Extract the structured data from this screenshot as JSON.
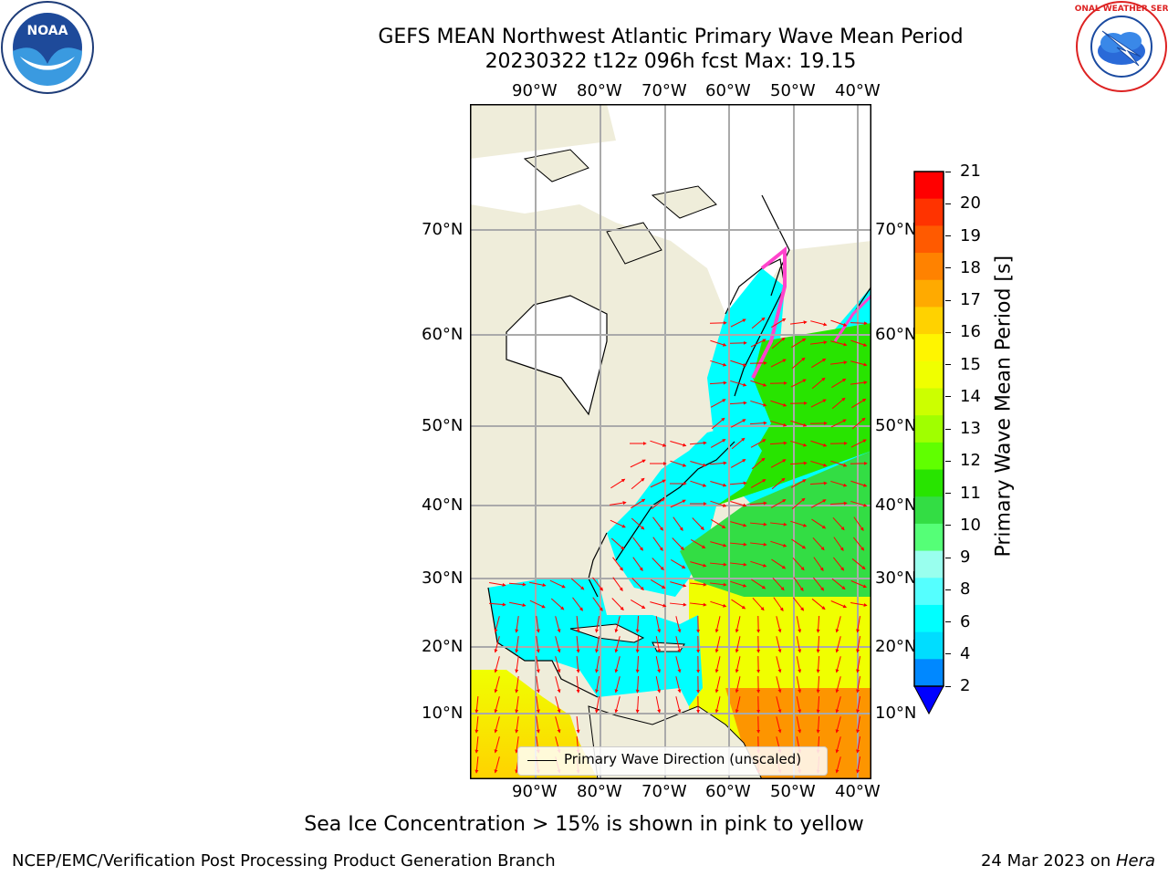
{
  "title": {
    "line1": "GEFS MEAN Northwest Atlantic Primary Wave Mean Period",
    "line2": "20230322 t12z 096h fcst   Max: 19.15"
  },
  "map": {
    "lon_labels_top": [
      "90°W",
      "80°W",
      "70°W",
      "60°W",
      "50°W",
      "40°W"
    ],
    "lon_labels_bottom": [
      "90°W",
      "80°W",
      "70°W",
      "60°W",
      "50°W",
      "40°W"
    ],
    "lat_labels_left": [
      "70°N",
      "60°N",
      "50°N",
      "40°N",
      "30°N",
      "20°N",
      "10°N"
    ],
    "lat_labels_right": [
      "70°N",
      "60°N",
      "50°N",
      "40°N",
      "30°N",
      "20°N",
      "10°N"
    ],
    "legend": "Primary Wave Direction (unscaled)"
  },
  "colorbar": {
    "label": "Primary Wave Mean Period [s]",
    "ticks": [
      "21",
      "20",
      "19",
      "18",
      "17",
      "16",
      "15",
      "14",
      "13",
      "12",
      "11",
      "10",
      "9",
      "8",
      "6",
      "4",
      "2"
    ],
    "colors": [
      "#ff0000",
      "#ff3300",
      "#ff5a00",
      "#ff8200",
      "#ffaa00",
      "#ffd200",
      "#fff500",
      "#f0ff00",
      "#ccff00",
      "#a0ff00",
      "#60ff00",
      "#28e400",
      "#33dd44",
      "#55ff77",
      "#99ffee",
      "#55ffff",
      "#00ffff",
      "#00ddff",
      "#0088ff"
    ],
    "under_color": "#0000ff"
  },
  "caption": "Sea Ice Concentration > 15% is shown in pink to yellow",
  "footer": {
    "left": "NCEP/EMC/Verification Post Processing Product Generation Branch",
    "right_date": "24 Mar 2023 on ",
    "right_host": "Hera"
  },
  "logos": {
    "noaa": "NOAA",
    "nws": "NATIONAL WEATHER SERVICE"
  }
}
